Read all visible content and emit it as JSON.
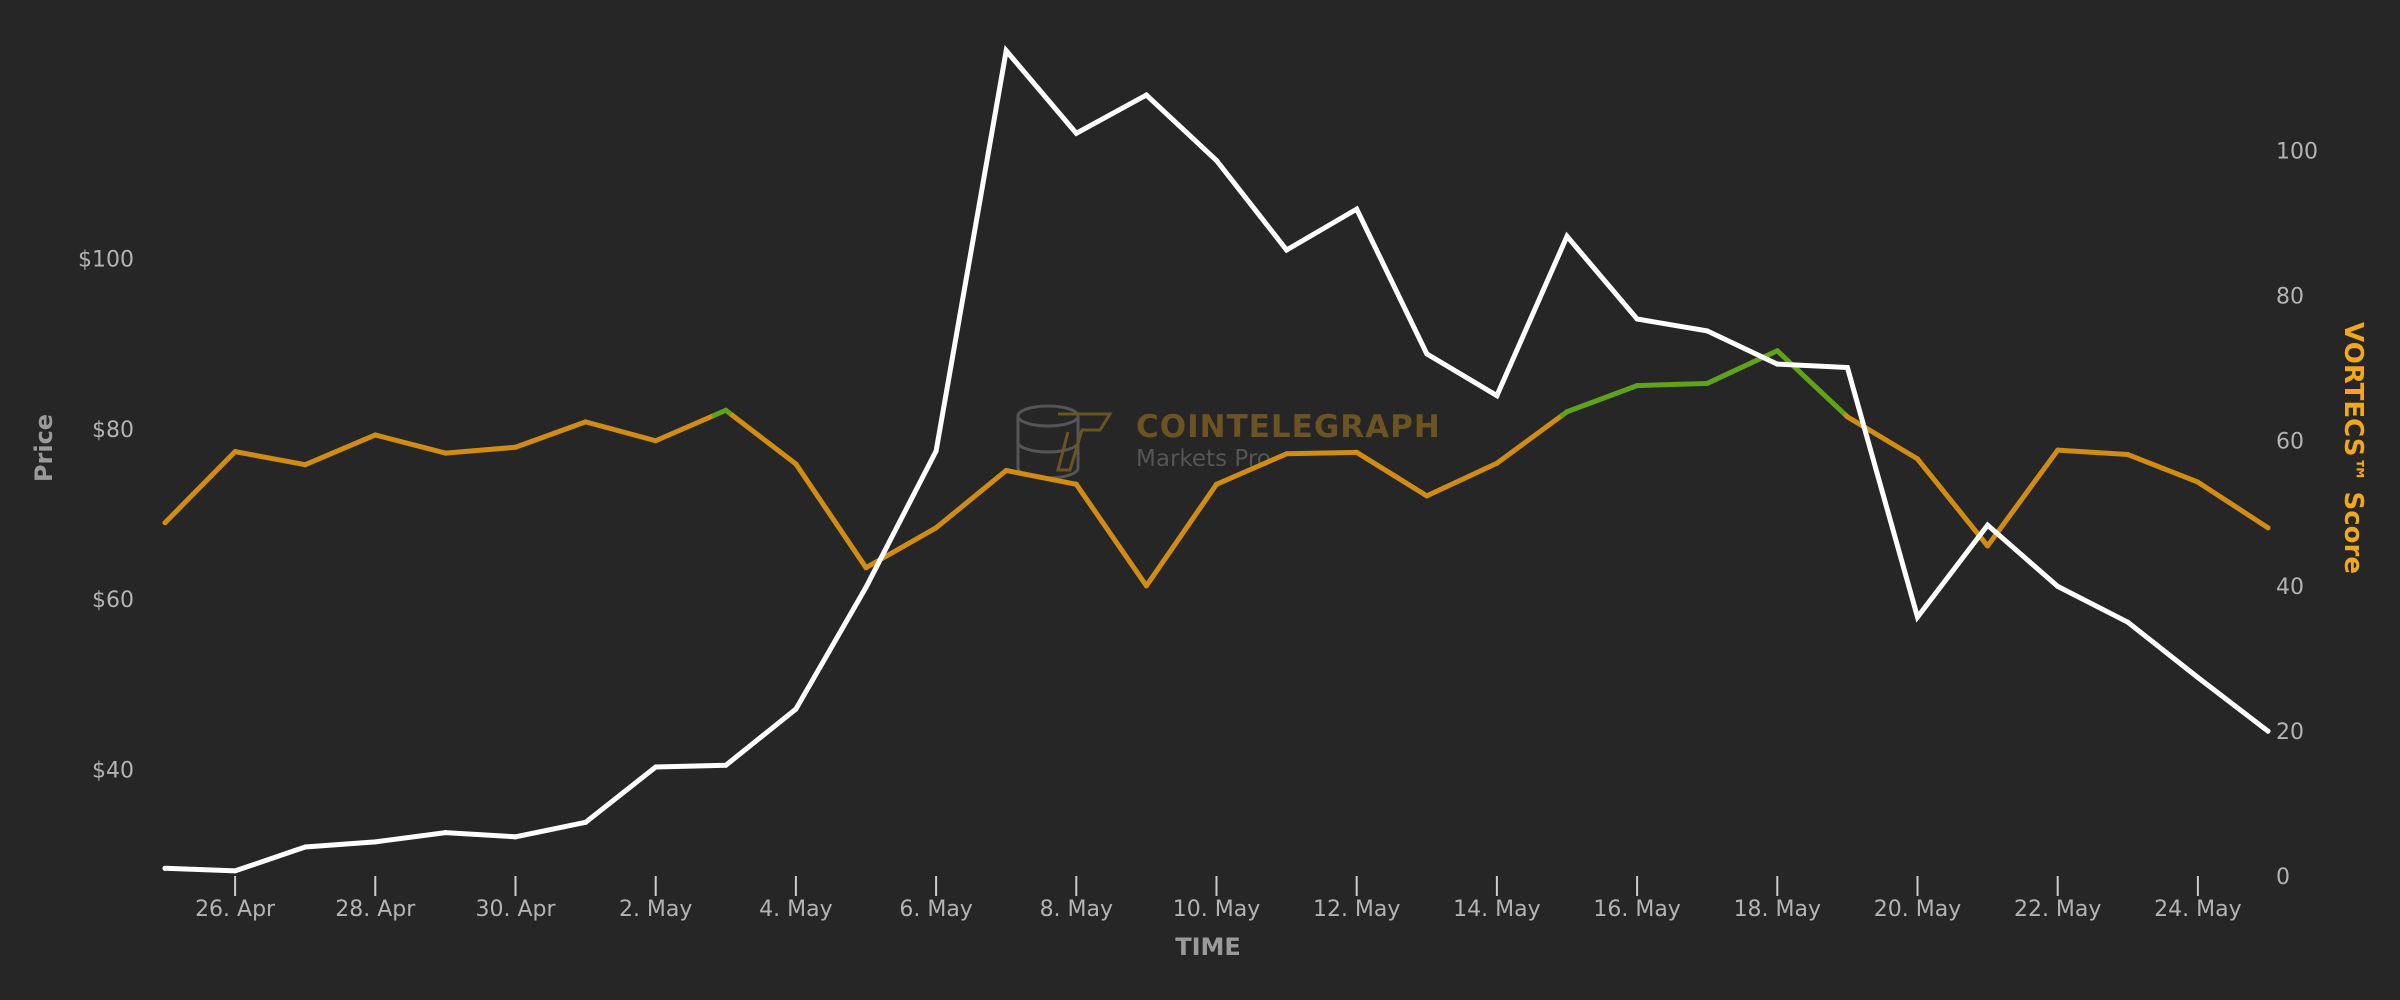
{
  "watermark": {
    "brand": "COINTELEGRAPH",
    "product": "Markets Pro"
  },
  "colors": {
    "background": "#262626",
    "price_line": "#ffffff",
    "score_line": "#d18c14",
    "score_line_high": "#5ea31a",
    "score_title": "#f0a81c",
    "tick_text": "#b3b3b3"
  },
  "chart_data": {
    "type": "line",
    "xlabel": "TIME",
    "ylabel_left": "Price",
    "ylabel_right": "VORTECS™ Score",
    "x": [
      "25. Apr",
      "26. Apr",
      "27. Apr",
      "28. Apr",
      "29. Apr",
      "30. Apr",
      "1. May",
      "2. May",
      "3. May",
      "4. May",
      "5. May",
      "6. May",
      "7. May",
      "8. May",
      "9. May",
      "10. May",
      "11. May",
      "12. May",
      "13. May",
      "14. May",
      "15. May",
      "16. May",
      "17. May",
      "18. May",
      "19. May",
      "20. May",
      "21. May",
      "22. May",
      "23. May",
      "24. May",
      "25. May"
    ],
    "x_tick_labels": [
      "26. Apr",
      "28. Apr",
      "30. Apr",
      "2. May",
      "4. May",
      "6. May",
      "8. May",
      "10. May",
      "12. May",
      "14. May",
      "16. May",
      "18. May",
      "20. May",
      "22. May",
      "24. May"
    ],
    "left_axis": {
      "ticks": [
        40,
        60,
        80,
        100
      ],
      "tick_labels": [
        "$40",
        "$60",
        "$80",
        "$100"
      ],
      "range": [
        27.5,
        128
      ]
    },
    "right_axis": {
      "ticks": [
        0,
        20,
        40,
        60,
        80,
        100
      ],
      "tick_labels": [
        "0",
        "20",
        "40",
        "60",
        "80",
        "100"
      ],
      "range": [
        0,
        118
      ]
    },
    "high_score_threshold": 63.5,
    "series": [
      {
        "name": "Price",
        "axis": "left",
        "values": [
          28.4,
          28.1,
          30.9,
          31.5,
          32.6,
          32.1,
          33.8,
          40.3,
          40.5,
          47.1,
          61.4,
          77.4,
          124.4,
          114.7,
          119.2,
          111.5,
          101.0,
          105.8,
          88.8,
          83.9,
          102.6,
          92.9,
          91.5,
          87.6,
          87.2,
          57.9,
          68.7,
          61.5,
          57.3,
          50.8,
          44.5
        ]
      },
      {
        "name": "VORTECS™ Score",
        "axis": "right",
        "values": [
          48.7,
          58.5,
          56.7,
          60.8,
          58.3,
          59.1,
          62.6,
          60.0,
          64.2,
          56.8,
          42.5,
          48.0,
          55.9,
          54.0,
          40.0,
          54.0,
          58.2,
          58.4,
          52.4,
          56.9,
          64.0,
          67.6,
          67.9,
          72.4,
          63.3,
          57.5,
          45.5,
          58.7,
          58.1,
          54.3,
          48.0
        ]
      }
    ]
  }
}
